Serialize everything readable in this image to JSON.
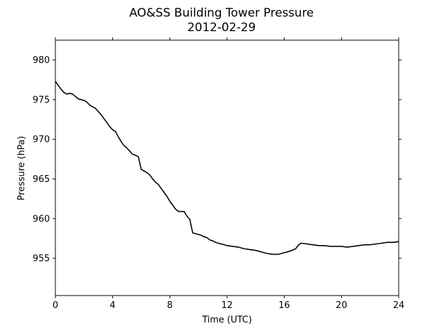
{
  "chart_data": {
    "type": "line",
    "title": "AO&SS Building Tower Pressure",
    "subtitle": "2012-02-29",
    "xlabel": "Time (UTC)",
    "ylabel": "Pressure (hPa)",
    "xlim": [
      0,
      24
    ],
    "ylim": [
      950.3,
      982.5
    ],
    "xticks": [
      0,
      4,
      8,
      12,
      16,
      20,
      24
    ],
    "yticks": [
      955,
      960,
      965,
      970,
      975,
      980
    ],
    "grid": false,
    "series_color": "#000000",
    "series": [
      {
        "x": [
          0,
          0.2,
          0.4,
          0.6,
          0.8,
          1.0,
          1.2,
          1.4,
          1.6,
          1.8,
          2.0,
          2.2,
          2.4,
          2.6,
          2.8,
          3.0,
          3.2,
          3.4,
          3.6,
          3.8,
          4.0,
          4.2,
          4.4,
          4.6,
          4.8,
          5.0,
          5.2,
          5.4,
          5.6,
          5.8,
          6.0,
          6.2,
          6.4,
          6.6,
          6.8,
          7.0,
          7.2,
          7.4,
          7.6,
          7.8,
          8.0,
          8.2,
          8.4,
          8.6,
          8.8,
          9.0,
          9.2,
          9.4,
          9.6,
          9.8,
          10.0,
          10.2,
          10.4,
          10.6,
          10.8,
          11.0,
          11.2,
          11.4,
          11.6,
          11.8,
          12.0,
          12.4,
          12.8,
          13.2,
          13.6,
          14.0,
          14.4,
          14.8,
          15.2,
          15.6,
          16.0,
          16.4,
          16.8,
          17.0,
          17.2,
          17.6,
          18.0,
          18.4,
          18.8,
          19.2,
          19.6,
          20.0,
          20.4,
          20.8,
          21.2,
          21.6,
          22.0,
          22.4,
          22.8,
          23.2,
          23.6,
          24.0
        ],
        "values": [
          977.3,
          976.8,
          976.3,
          975.9,
          975.7,
          975.8,
          975.7,
          975.4,
          975.1,
          975.0,
          974.9,
          974.7,
          974.3,
          974.1,
          973.9,
          973.5,
          973.1,
          972.6,
          972.1,
          971.6,
          971.2,
          971.0,
          970.3,
          969.7,
          969.2,
          968.9,
          968.5,
          968.1,
          968.0,
          967.8,
          966.2,
          966.0,
          965.8,
          965.5,
          965.0,
          964.6,
          964.3,
          963.8,
          963.3,
          962.8,
          962.2,
          961.7,
          961.2,
          960.9,
          960.9,
          960.9,
          960.3,
          959.9,
          958.2,
          958.1,
          958.0,
          957.9,
          957.7,
          957.6,
          957.3,
          957.2,
          957.0,
          956.9,
          956.8,
          956.7,
          956.6,
          956.5,
          956.4,
          956.2,
          956.1,
          956.0,
          955.8,
          955.6,
          955.5,
          955.5,
          955.7,
          955.9,
          956.2,
          956.7,
          956.9,
          956.8,
          956.7,
          956.6,
          956.6,
          956.5,
          956.5,
          956.5,
          956.4,
          956.5,
          956.6,
          956.7,
          956.7,
          956.8,
          956.9,
          957.0,
          957.0,
          957.1
        ]
      }
    ]
  }
}
